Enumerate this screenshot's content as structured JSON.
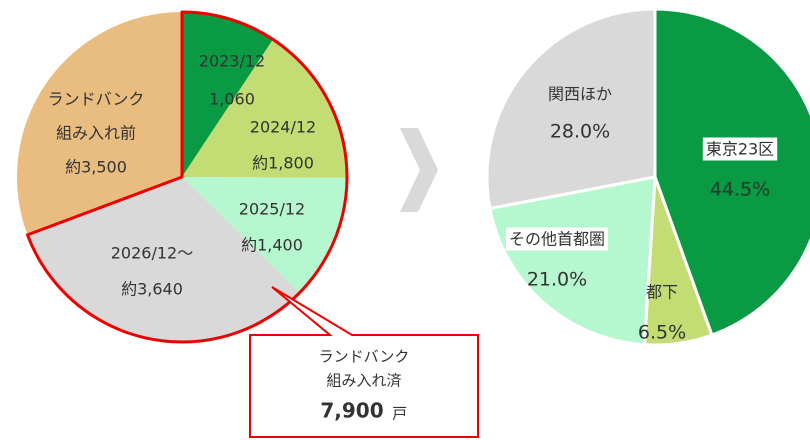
{
  "chart_data": [
    {
      "type": "pie",
      "categories": [
        "2023/12",
        "2024/12",
        "2025/12",
        "2026/12〜",
        [
          "ランドバンク",
          "組み入れ前"
        ]
      ],
      "values": [
        1060,
        1800,
        1400,
        3640,
        3500
      ],
      "value_labels": [
        "1,060",
        "約1,800",
        "約1,400",
        "約3,640",
        "約3,500"
      ],
      "colors": [
        "#0a9a44",
        "#c3dd74",
        "#b5f7cf",
        "#d9d9d9",
        "#e9bc7f"
      ],
      "annotation": {
        "lines": [
          "ランドバンク",
          "組み入れ済"
        ],
        "value_label": "7,900",
        "unit": "戸"
      }
    },
    {
      "type": "pie",
      "categories": [
        "東京23区",
        "都下",
        "その他首都圏",
        "関西ほか"
      ],
      "values": [
        44.5,
        6.5,
        21.0,
        28.0
      ],
      "value_labels": [
        "44.5%",
        "6.5%",
        "21.0%",
        "28.0%"
      ],
      "colors": [
        "#0a9a44",
        "#c3dd74",
        "#b5f7cf",
        "#d9d9d9"
      ]
    }
  ]
}
